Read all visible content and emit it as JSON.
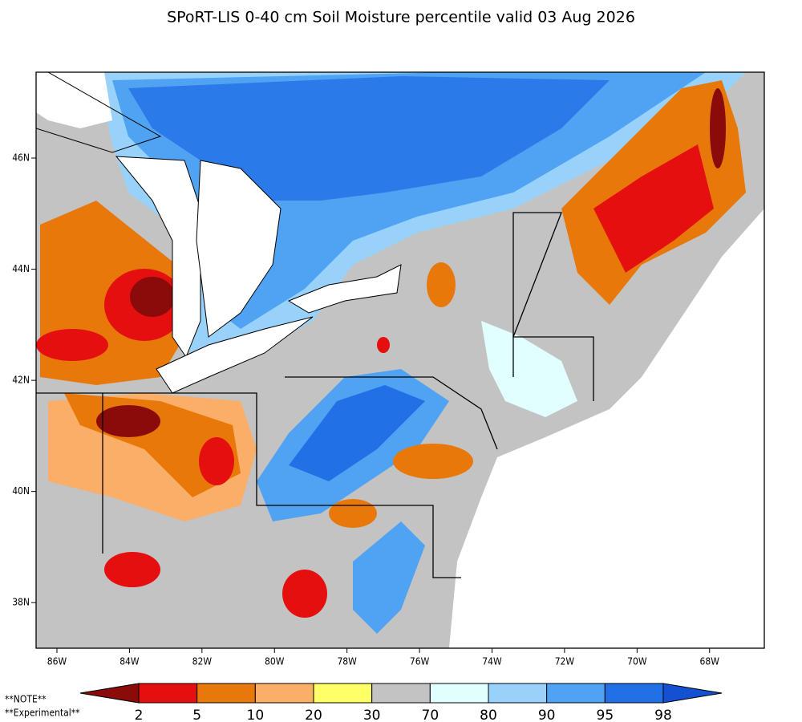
{
  "title": "SPoRT-LIS 0-40 cm Soil Moisture percentile valid 03 Aug 2026",
  "map": {
    "xlim": [
      -86.575,
      -66.49
    ],
    "ylim": [
      37.18,
      47.545
    ],
    "xticks": [
      {
        "value": -86,
        "label": "86W"
      },
      {
        "value": -84,
        "label": "84W"
      },
      {
        "value": -82,
        "label": "82W"
      },
      {
        "value": -80,
        "label": "80W"
      },
      {
        "value": -78,
        "label": "78W"
      },
      {
        "value": -76,
        "label": "76W"
      },
      {
        "value": -74,
        "label": "74W"
      },
      {
        "value": -72,
        "label": "72W"
      },
      {
        "value": -70,
        "label": "70W"
      },
      {
        "value": -68,
        "label": "68W"
      }
    ],
    "yticks": [
      {
        "value": 38,
        "label": "38N"
      },
      {
        "value": 40,
        "label": "40N"
      },
      {
        "value": 42,
        "label": "42N"
      },
      {
        "value": 44,
        "label": "44N"
      },
      {
        "value": 46,
        "label": "46N"
      }
    ]
  },
  "colorbar": {
    "bounds": [
      2,
      5,
      10,
      20,
      30,
      70,
      80,
      90,
      95,
      98
    ],
    "colors": [
      "#8b0a0a",
      "#e60f0f",
      "#e8780a",
      "#fbae68",
      "#ffff66",
      "#c3c3c3",
      "#e1ffff",
      "#98d2fa",
      "#50a3f3",
      "#2070e6",
      "#1450d2"
    ]
  },
  "notes": [
    "**NOTE**",
    "**Experimental**"
  ]
}
